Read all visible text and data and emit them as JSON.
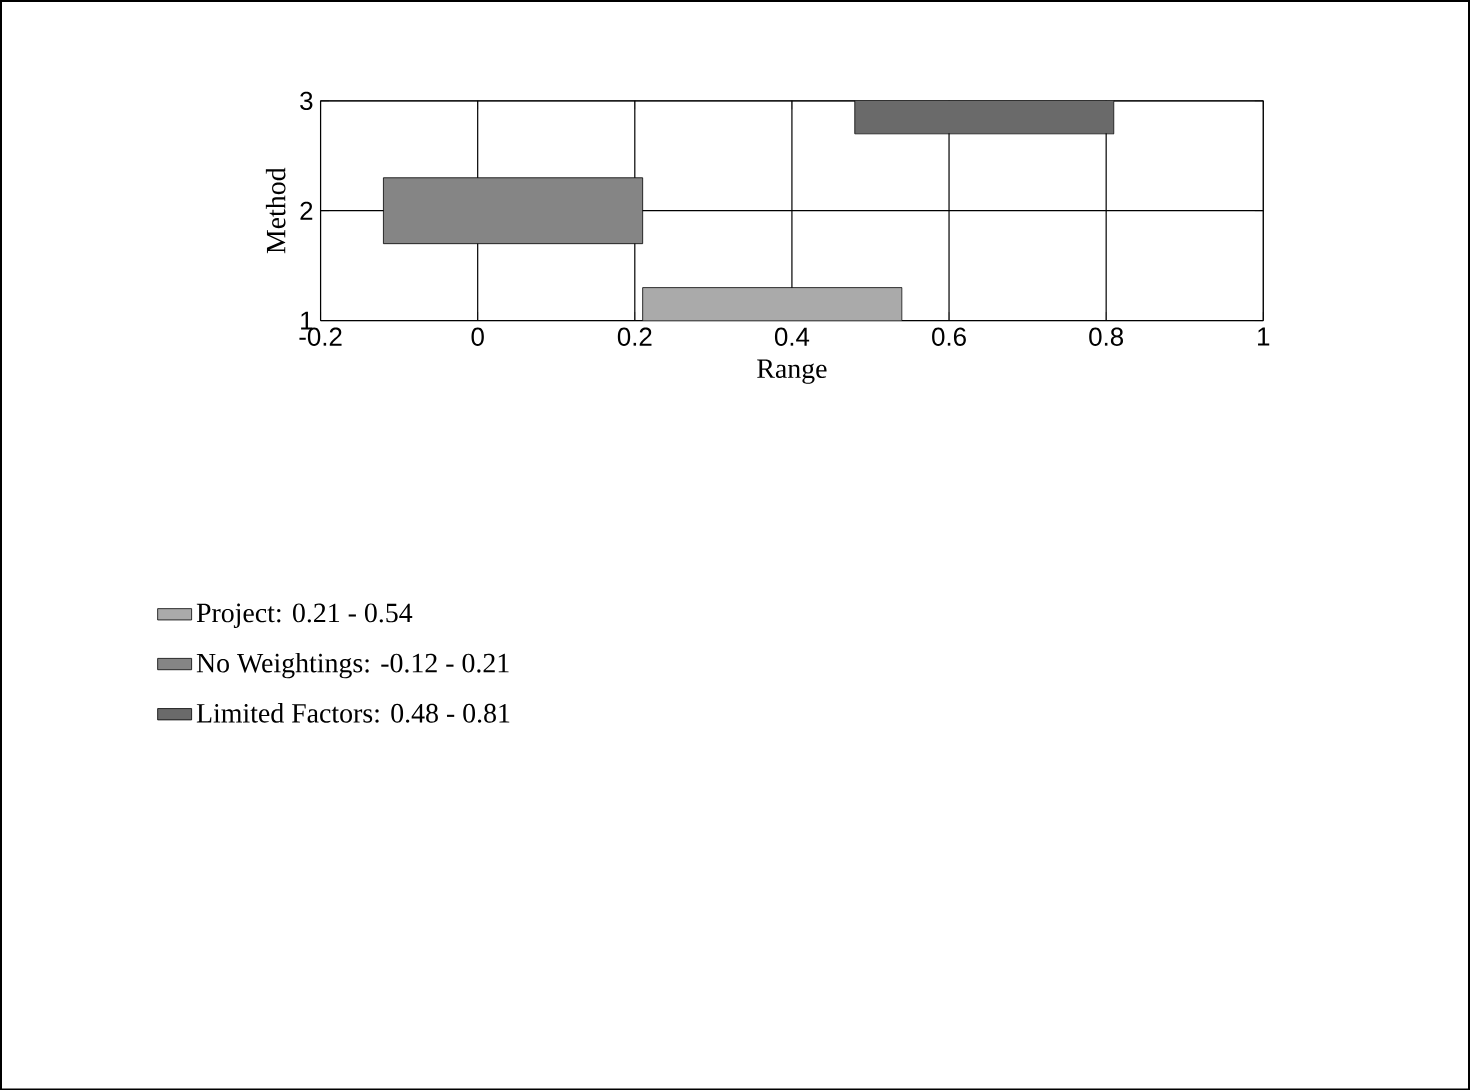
{
  "chart_data": {
    "type": "bar",
    "orientation": "horizontal",
    "xlabel": "Range",
    "ylabel": "Method",
    "categories": [
      "3",
      "2",
      "1"
    ],
    "series": [
      {
        "name": "Project: 0.21 - 0.54",
        "color": "#aaaaaa",
        "base": [
          null,
          null,
          0.21
        ],
        "values": [
          null,
          null,
          0.33
        ]
      },
      {
        "name": "No Weightings: -0.12 - 0.21",
        "color": "#858585",
        "base": [
          null,
          -0.12,
          null
        ],
        "values": [
          null,
          0.33,
          null
        ]
      },
      {
        "name": "Limited Factors: 0.48 - 0.81",
        "color": "#6a6a6a",
        "base": [
          0.48,
          null,
          null
        ],
        "values": [
          0.33,
          null,
          null
        ]
      }
    ],
    "xlim": [
      -0.2,
      1
    ],
    "xticks": [
      -0.2,
      0,
      0.2,
      0.4,
      0.6,
      0.8,
      1
    ],
    "grid": true,
    "legend": "bottom left"
  }
}
